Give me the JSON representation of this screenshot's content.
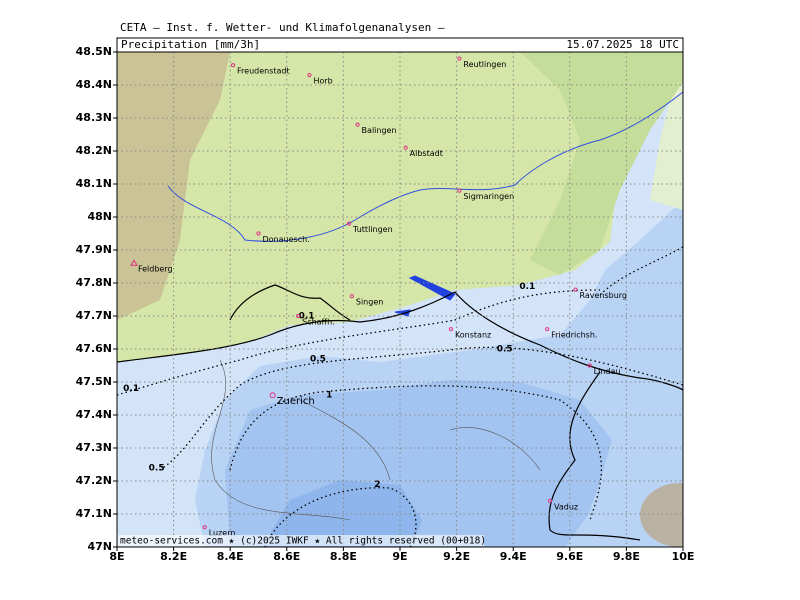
{
  "header": "CETA – Inst. f. Wetter- und Klimafolgenanalysen –",
  "map": {
    "title": "Precipitation [mm/3h]",
    "date": "15.07.2025 18 UTC",
    "footer": "meteo-services.com ★ (c)2025 IWKF ★ All rights reserved (00+018)",
    "xlim": [
      8,
      10
    ],
    "ylim": [
      47,
      48.5
    ],
    "grid": true,
    "xticks": [
      {
        "value": 8,
        "label": "8E"
      },
      {
        "value": 8.2,
        "label": "8.2E"
      },
      {
        "value": 8.4,
        "label": "8.4E"
      },
      {
        "value": 8.6,
        "label": "8.6E"
      },
      {
        "value": 8.8,
        "label": "8.8E"
      },
      {
        "value": 9,
        "label": "9E"
      },
      {
        "value": 9.2,
        "label": "9.2E"
      },
      {
        "value": 9.4,
        "label": "9.4E"
      },
      {
        "value": 9.6,
        "label": "9.6E"
      },
      {
        "value": 9.8,
        "label": "9.8E"
      },
      {
        "value": 10,
        "label": "10E"
      }
    ],
    "yticks": [
      {
        "value": 47,
        "label": "47N"
      },
      {
        "value": 47.1,
        "label": "47.1N"
      },
      {
        "value": 47.2,
        "label": "47.2N"
      },
      {
        "value": 47.3,
        "label": "47.3N"
      },
      {
        "value": 47.4,
        "label": "47.4N"
      },
      {
        "value": 47.5,
        "label": "47.5N"
      },
      {
        "value": 47.6,
        "label": "47.6N"
      },
      {
        "value": 47.7,
        "label": "47.7N"
      },
      {
        "value": 47.8,
        "label": "47.8N"
      },
      {
        "value": 47.9,
        "label": "47.9N"
      },
      {
        "value": 48,
        "label": "48N"
      },
      {
        "value": 48.1,
        "label": "48.1N"
      },
      {
        "value": 48.2,
        "label": "48.2N"
      },
      {
        "value": 48.3,
        "label": "48.3N"
      },
      {
        "value": 48.4,
        "label": "48.4N"
      },
      {
        "value": 48.5,
        "label": "48.5N"
      }
    ],
    "cities": [
      {
        "name": "Freudenstadt",
        "lon": 8.41,
        "lat": 48.46
      },
      {
        "name": "Horb",
        "lon": 8.68,
        "lat": 48.43
      },
      {
        "name": "Reutlingen",
        "lon": 9.21,
        "lat": 48.48
      },
      {
        "name": "Balingen",
        "lon": 8.85,
        "lat": 48.28
      },
      {
        "name": "Albstadt",
        "lon": 9.02,
        "lat": 48.21
      },
      {
        "name": "Sigmaringen",
        "lon": 9.21,
        "lat": 48.08
      },
      {
        "name": "Tuttlingen",
        "lon": 8.82,
        "lat": 47.98
      },
      {
        "name": "Donauesch.",
        "lon": 8.5,
        "lat": 47.95
      },
      {
        "name": "Feldberg",
        "lon": 8.06,
        "lat": 47.86
      },
      {
        "name": "Singen",
        "lon": 8.83,
        "lat": 47.76
      },
      {
        "name": "Schaffh.",
        "lon": 8.64,
        "lat": 47.7
      },
      {
        "name": "Konstanz",
        "lon": 9.18,
        "lat": 47.66
      },
      {
        "name": "Ravensburg",
        "lon": 9.62,
        "lat": 47.78
      },
      {
        "name": "Friedrichsh.",
        "lon": 9.52,
        "lat": 47.66
      },
      {
        "name": "Lindau",
        "lon": 9.67,
        "lat": 47.55
      },
      {
        "name": "Zuerich",
        "lon": 8.55,
        "lat": 47.46
      },
      {
        "name": "Vaduz",
        "lon": 9.53,
        "lat": 47.14
      },
      {
        "name": "Luzern",
        "lon": 8.31,
        "lat": 47.06
      }
    ],
    "contour_labels": [
      {
        "value": 0.1,
        "lon": 9.45,
        "lat": 47.79
      },
      {
        "value": 0.1,
        "lon": 8.05,
        "lat": 47.48
      },
      {
        "value": 0.1,
        "lon": 8.67,
        "lat": 47.7
      },
      {
        "value": 0.5,
        "lon": 8.71,
        "lat": 47.57
      },
      {
        "value": 0.5,
        "lon": 9.37,
        "lat": 47.6
      },
      {
        "value": 0.5,
        "lon": 8.14,
        "lat": 47.24
      },
      {
        "value": 1,
        "lon": 8.75,
        "lat": 47.46
      },
      {
        "value": 2,
        "lon": 8.92,
        "lat": 47.19
      }
    ]
  }
}
